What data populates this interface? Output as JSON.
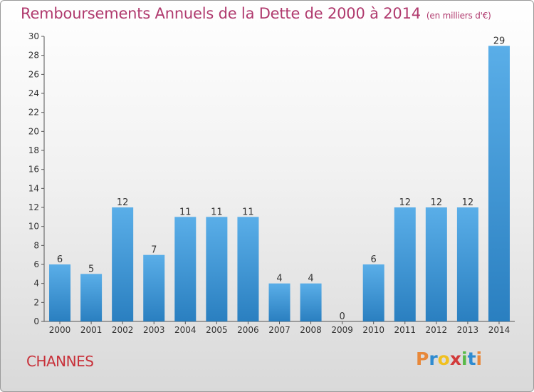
{
  "header": {
    "title": "Remboursements Annuels de la Dette de 2000 à 2014",
    "unit": "(en milliers d'€)"
  },
  "footer": {
    "commune": "CHANNES",
    "logo_text": "Proxiti",
    "logo_colors": [
      "#e8883a",
      "#2e8bd0",
      "#f0c020",
      "#d23a3a",
      "#58b947",
      "#2e8bd0",
      "#e8883a"
    ]
  },
  "colors": {
    "bar_light": "#5aaee8",
    "bar_dark": "#2a7fc0",
    "title": "#b03a6e",
    "commune": "#c8313a"
  },
  "chart_data": {
    "type": "bar",
    "title": "Remboursements Annuels de la Dette de 2000 à 2014",
    "xlabel": "",
    "ylabel": "",
    "categories": [
      "2000",
      "2001",
      "2002",
      "2003",
      "2004",
      "2005",
      "2006",
      "2007",
      "2008",
      "2009",
      "2010",
      "2011",
      "2012",
      "2013",
      "2014"
    ],
    "values": [
      6,
      5,
      12,
      7,
      11,
      11,
      11,
      4,
      4,
      0,
      6,
      12,
      12,
      12,
      29
    ],
    "ylim": [
      0,
      30
    ],
    "yticks": [
      0,
      2,
      4,
      6,
      8,
      10,
      12,
      14,
      16,
      18,
      20,
      22,
      24,
      26,
      28,
      30
    ],
    "grid": false,
    "legend": "none"
  }
}
